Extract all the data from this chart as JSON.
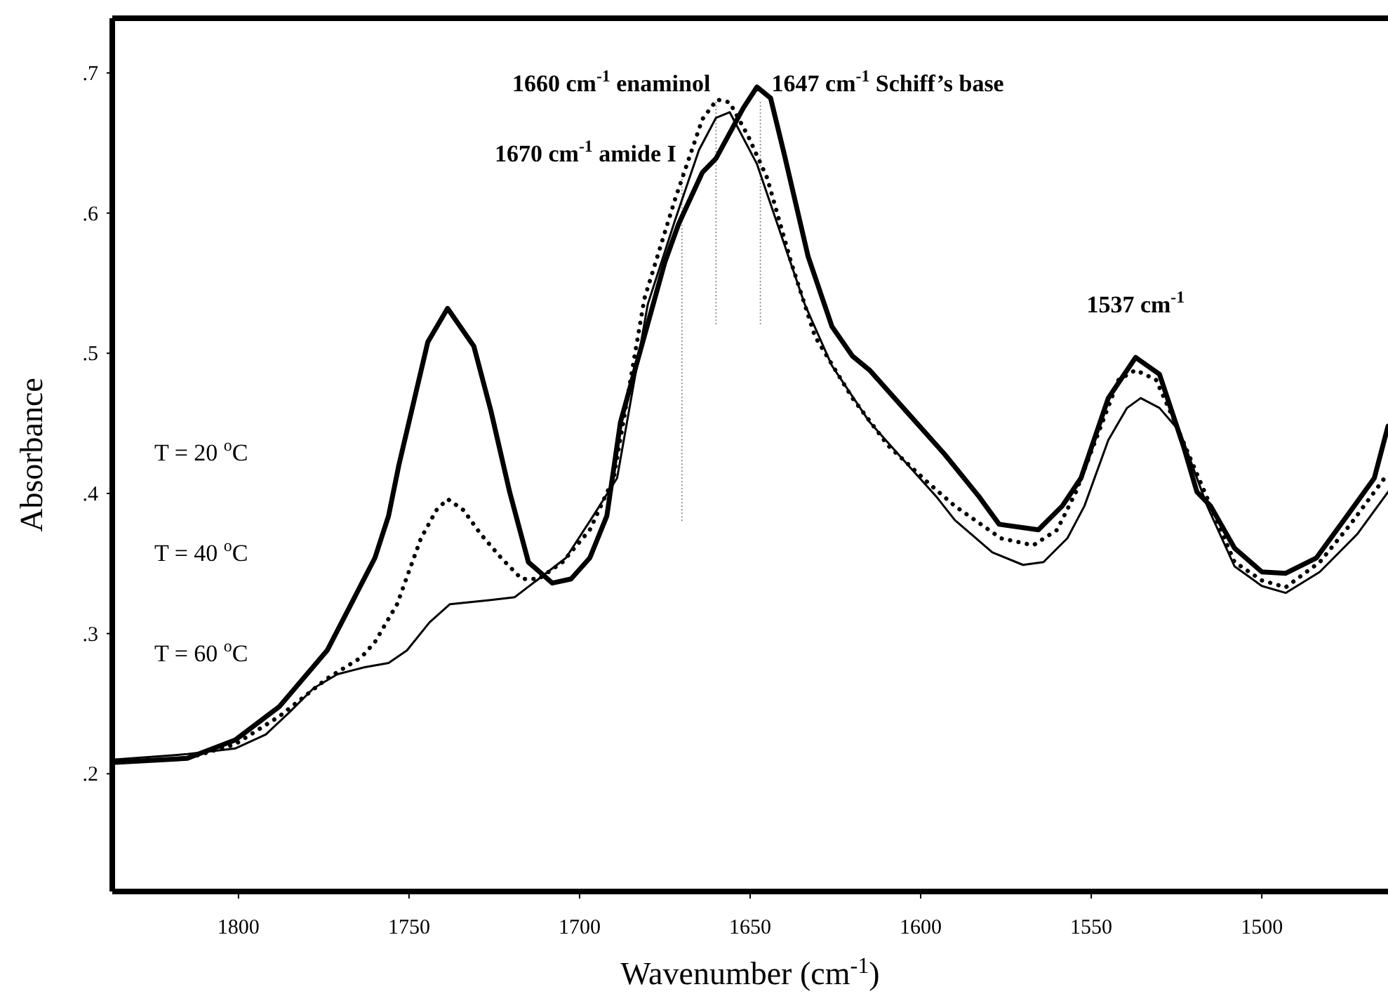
{
  "chart_data": {
    "type": "line",
    "xlabel": "Wavenumber (cm$^{-1}$)",
    "ylabel": "Absorbance",
    "xlim": [
      1837,
      1463
    ],
    "ylim": [
      0.116,
      0.739
    ],
    "xticks": [
      1800,
      1750,
      1700,
      1650,
      1600,
      1550,
      1500
    ],
    "yticks": [
      {
        "value": 0.2,
        "label": ".2"
      },
      {
        "value": 0.3,
        "label": ".3"
      },
      {
        "value": 0.4,
        "label": ".4"
      },
      {
        "value": 0.5,
        "label": ".5"
      },
      {
        "value": 0.6,
        "label": ".6"
      },
      {
        "value": 0.7,
        "label": ".7"
      }
    ],
    "grid": false,
    "series": [
      {
        "color": "#000000",
        "line_style": "solid",
        "x": [
          1837,
          1815,
          1801,
          1788,
          1774,
          1760,
          1756,
          1753,
          1744.5,
          1738.7,
          1731,
          1726,
          1720.5,
          1715,
          1708,
          1702.5,
          1697,
          1692,
          1688,
          1675,
          1671,
          1664,
          1660,
          1652,
          1648,
          1644,
          1640,
          1633,
          1626,
          1620,
          1615,
          1604,
          1593,
          1583,
          1577,
          1565.5,
          1558.5,
          1553,
          1545,
          1537,
          1530,
          1523,
          1519,
          1515,
          1508,
          1500,
          1493,
          1484,
          1475,
          1467,
          1463
        ],
        "values": [
          0.208,
          0.211,
          0.224,
          0.248,
          0.288,
          0.354,
          0.384,
          0.42,
          0.508,
          0.532,
          0.505,
          0.459,
          0.401,
          0.351,
          0.336,
          0.339,
          0.354,
          0.384,
          0.451,
          0.565,
          0.592,
          0.629,
          0.639,
          0.675,
          0.69,
          0.682,
          0.642,
          0.569,
          0.519,
          0.498,
          0.488,
          0.458,
          0.428,
          0.398,
          0.378,
          0.374,
          0.391,
          0.411,
          0.468,
          0.497,
          0.485,
          0.434,
          0.401,
          0.391,
          0.361,
          0.344,
          0.343,
          0.354,
          0.384,
          0.411,
          0.448
        ]
      },
      {
        "color": "#000000",
        "line_style": "dotted",
        "x": [
          1837,
          1815,
          1801,
          1788,
          1774,
          1764,
          1760,
          1753.5,
          1746.5,
          1742,
          1738.7,
          1734,
          1729,
          1723,
          1717,
          1712,
          1705,
          1697,
          1690,
          1681,
          1672,
          1664,
          1659.7,
          1656,
          1650.6,
          1645,
          1638,
          1631,
          1620,
          1609.5,
          1598,
          1590,
          1576.5,
          1567,
          1560,
          1554.5,
          1542,
          1537,
          1531,
          1525.5,
          1508,
          1500,
          1493,
          1483,
          1474,
          1464
        ],
        "values": [
          0.208,
          0.211,
          0.221,
          0.241,
          0.268,
          0.283,
          0.294,
          0.321,
          0.368,
          0.388,
          0.396,
          0.388,
          0.371,
          0.354,
          0.339,
          0.339,
          0.351,
          0.374,
          0.411,
          0.539,
          0.61,
          0.667,
          0.681,
          0.679,
          0.655,
          0.625,
          0.565,
          0.512,
          0.468,
          0.434,
          0.408,
          0.391,
          0.368,
          0.363,
          0.374,
          0.401,
          0.481,
          0.488,
          0.481,
          0.451,
          0.351,
          0.338,
          0.333,
          0.351,
          0.378,
          0.411
        ]
      },
      {
        "color": "#000000",
        "line_style": "solid",
        "x": [
          1837,
          1815,
          1801,
          1792,
          1785,
          1778,
          1771,
          1763,
          1756,
          1750.6,
          1744,
          1738,
          1726,
          1719,
          1712,
          1704,
          1696,
          1689,
          1680,
          1672,
          1665,
          1660,
          1656,
          1648,
          1641,
          1634,
          1626,
          1615,
          1604,
          1595.5,
          1590,
          1579,
          1570,
          1564,
          1557,
          1552,
          1545,
          1539.5,
          1535.5,
          1530,
          1524,
          1516,
          1508,
          1500,
          1493,
          1483,
          1472,
          1463
        ],
        "values": [
          0.21,
          0.214,
          0.218,
          0.228,
          0.244,
          0.261,
          0.271,
          0.276,
          0.279,
          0.288,
          0.308,
          0.321,
          0.324,
          0.326,
          0.339,
          0.354,
          0.384,
          0.411,
          0.535,
          0.595,
          0.645,
          0.668,
          0.672,
          0.635,
          0.585,
          0.535,
          0.491,
          0.451,
          0.421,
          0.398,
          0.381,
          0.358,
          0.349,
          0.351,
          0.368,
          0.391,
          0.438,
          0.461,
          0.468,
          0.461,
          0.444,
          0.391,
          0.348,
          0.334,
          0.329,
          0.344,
          0.371,
          0.401
        ]
      }
    ],
    "ref_lines": [
      {
        "axis": "x",
        "value": 1670,
        "label": "1670 cm$^{-1}$ amide I",
        "color": "#888888",
        "line_style": "dotted"
      },
      {
        "axis": "x",
        "value": 1660,
        "label": "1660 cm$^{-1}$ enaminol",
        "color": "#888888",
        "line_style": "dotted"
      },
      {
        "axis": "x",
        "value": 1647,
        "label": "1647 cm$^{-1}$ Schiff’s base",
        "color": "#888888",
        "line_style": "dotted"
      }
    ],
    "annotations": [
      "T = 20 $^{o}$C",
      "T = 40 $^{o}$C",
      "T = 60 $^{o}$C",
      {
        "text": "1537 cm$^{-1}$",
        "x": 1537,
        "y": 0.497
      }
    ]
  }
}
